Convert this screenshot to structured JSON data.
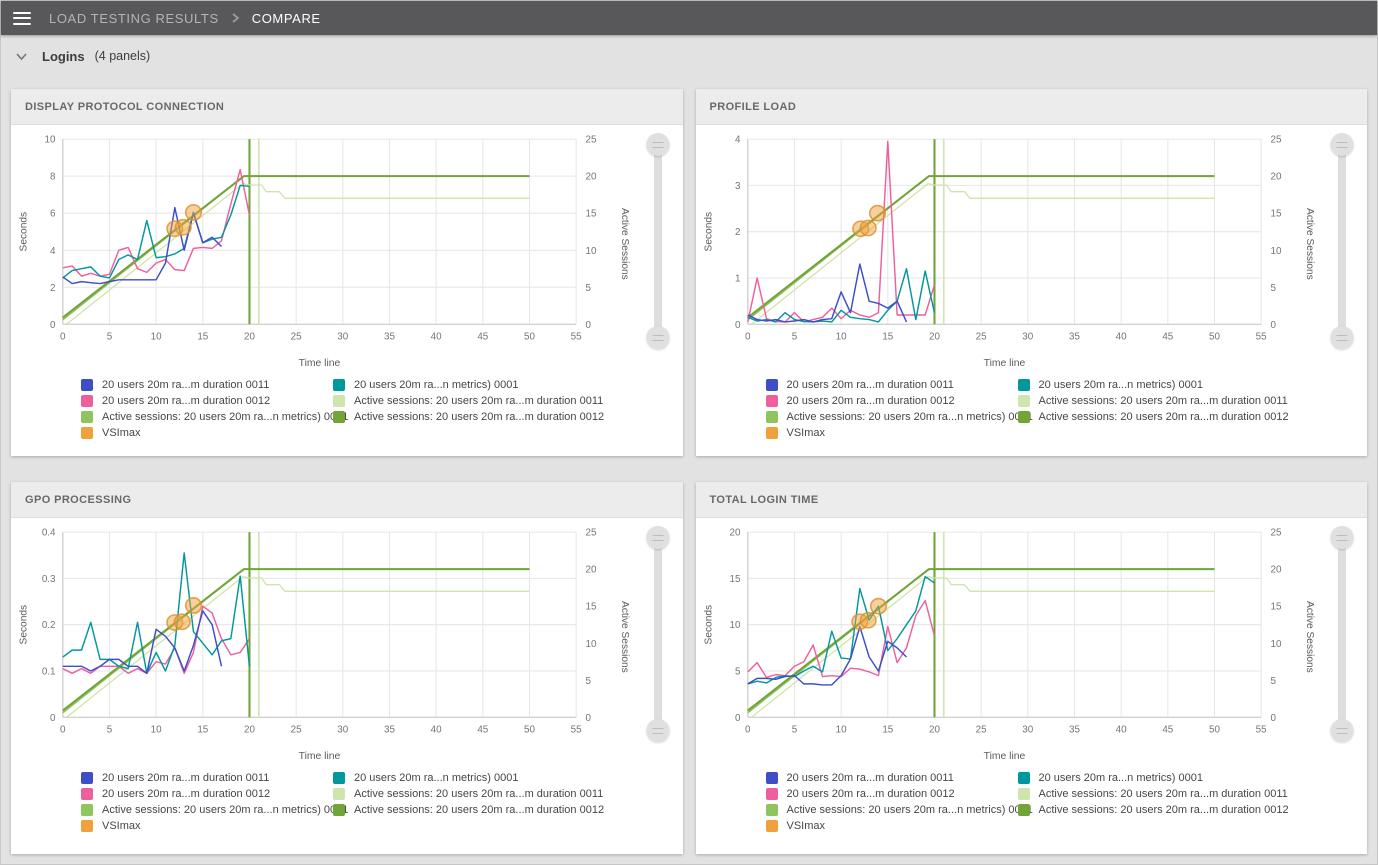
{
  "topbar": {
    "breadcrumb_root": "LOAD TESTING RESULTS",
    "breadcrumb_current": "COMPARE"
  },
  "section": {
    "label": "Logins",
    "count": "(4 panels)"
  },
  "colors": {
    "topbar_bg": "#58585a",
    "page_bg": "#e2e2e2",
    "panel_header_bg": "#ececec",
    "grid": "#e6e6e6",
    "axis": "#c8c8c8",
    "tick_text": "#757575",
    "blue": "#3d4ec6",
    "pink": "#ee5f9e",
    "teal": "#00989d",
    "pale_green": "#cfe5ae",
    "medium_green": "#8fc45e",
    "dark_green": "#73a437",
    "orange": "#efa13b",
    "orange_stroke": "#d98f2b"
  },
  "legend": {
    "col1": [
      {
        "label": "20 users 20m ra...m duration 0011",
        "color_key": "blue"
      },
      {
        "label": "20 users 20m ra...m duration 0012",
        "color_key": "pink"
      },
      {
        "label": "Active sessions: 20 users 20m ra...n metrics) 0001",
        "color_key": "medium_green"
      },
      {
        "label": "VSImax",
        "color_key": "orange"
      }
    ],
    "col2": [
      {
        "label": "20 users 20m ra...n metrics) 0001",
        "color_key": "teal"
      },
      {
        "label": "Active sessions: 20 users 20m ra...m duration 0011",
        "color_key": "pale_green"
      },
      {
        "label": "Active sessions: 20 users 20m ra...m duration 0012",
        "color_key": "dark_green"
      }
    ]
  },
  "chart_data": [
    {
      "type": "line",
      "title": "DISPLAY PROTOCOL CONNECTION",
      "xlabel": "Time line",
      "ylabel_left": "Seconds",
      "ylabel_right": "Active Sessions",
      "xlim": [
        0,
        55
      ],
      "x_ticks": [
        0,
        5,
        10,
        15,
        20,
        25,
        30,
        35,
        40,
        45,
        50,
        55
      ],
      "ylim_left": [
        0,
        10
      ],
      "y_ticks_left": [
        0,
        2,
        4,
        6,
        8,
        10
      ],
      "ylim_right": [
        0,
        25
      ],
      "y_ticks_right": [
        0,
        5,
        10,
        15,
        20,
        25
      ],
      "series": [
        {
          "name": "Active sessions: 20 users 20m ra...m duration 0011",
          "color_key": "pale_green",
          "axis": "right",
          "width": 1.3,
          "x": [
            0.4,
            19.3,
            20,
            21.3,
            21.8,
            23.2,
            23.8,
            50
          ],
          "y": [
            0,
            19,
            18.8,
            18.8,
            17.9,
            17.9,
            17,
            17
          ]
        },
        {
          "name": "Active sessions: 20 users 20m ra...n metrics) 0001",
          "color_key": "medium_green",
          "axis": "right",
          "width": 1.5,
          "x": [
            0,
            19.4,
            50
          ],
          "y": [
            0.6,
            20,
            20
          ]
        },
        {
          "name": "Active sessions: 20 users 20m ra...m duration 0012",
          "color_key": "dark_green",
          "axis": "right",
          "width": 2,
          "x": [
            0,
            19.4,
            50
          ],
          "y": [
            0.9,
            20,
            20
          ]
        },
        {
          "name": "20 users 20m ra...m duration 0012",
          "color_key": "pink",
          "axis": "left",
          "width": 1.4,
          "values": [
            3.05,
            3.15,
            2.6,
            2.75,
            2.6,
            2.7,
            4.0,
            4.15,
            3.0,
            2.8,
            3.3,
            3.5,
            2.95,
            2.9,
            4.1,
            4.15,
            4.1,
            4.5,
            6.5,
            8.35,
            5.9
          ]
        },
        {
          "name": "20 users 20m ra...n metrics) 0001",
          "color_key": "teal",
          "axis": "left",
          "width": 1.4,
          "values": [
            2.5,
            2.9,
            3.0,
            3.1,
            2.6,
            2.5,
            3.5,
            3.75,
            3.5,
            5.6,
            3.6,
            3.65,
            3.8,
            4.1,
            6.05,
            4.4,
            4.6,
            4.7,
            5.9,
            7.5,
            7.45
          ]
        },
        {
          "name": "20 users 20m ra...m duration 0011",
          "color_key": "blue",
          "axis": "left",
          "width": 1.4,
          "values": [
            2.55,
            2.2,
            2.3,
            2.25,
            2.2,
            2.3,
            2.4,
            2.4,
            2.4,
            2.4,
            2.4,
            3.3,
            6.3,
            4.0,
            6.0,
            4.4,
            4.7,
            4.2
          ]
        }
      ],
      "vlines": [
        {
          "x": 20,
          "color_key": "dark_green",
          "width": 2
        },
        {
          "x": 21,
          "color_key": "pale_green",
          "width": 1.5
        }
      ],
      "markers": {
        "name": "VSImax",
        "color_key": "orange",
        "axis": "right",
        "points": [
          [
            12,
            12.9
          ],
          [
            12.9,
            13.1
          ],
          [
            14,
            15.1
          ]
        ]
      }
    },
    {
      "type": "line",
      "title": "PROFILE LOAD",
      "xlabel": "Time line",
      "ylabel_left": "Seconds",
      "ylabel_right": "Active Sessions",
      "xlim": [
        0,
        55
      ],
      "x_ticks": [
        0,
        5,
        10,
        15,
        20,
        25,
        30,
        35,
        40,
        45,
        50,
        55
      ],
      "ylim_left": [
        0,
        4
      ],
      "y_ticks_left": [
        0,
        1,
        2,
        3,
        4
      ],
      "ylim_right": [
        0,
        25
      ],
      "y_ticks_right": [
        0,
        5,
        10,
        15,
        20,
        25
      ],
      "series": [
        {
          "name": "Active sessions: 20 users 20m ra...m duration 0011",
          "color_key": "pale_green",
          "axis": "right",
          "width": 1.3,
          "x": [
            0.4,
            19.3,
            20,
            21.3,
            21.8,
            23.2,
            23.8,
            50
          ],
          "y": [
            0,
            19,
            18.8,
            18.8,
            17.9,
            17.9,
            17,
            17
          ]
        },
        {
          "name": "Active sessions: 20 users 20m ra...n metrics) 0001",
          "color_key": "medium_green",
          "axis": "right",
          "width": 1.5,
          "x": [
            0,
            19.4,
            50
          ],
          "y": [
            0.6,
            20,
            20
          ]
        },
        {
          "name": "Active sessions: 20 users 20m ra...m duration 0012",
          "color_key": "dark_green",
          "axis": "right",
          "width": 2,
          "x": [
            0,
            19.4,
            50
          ],
          "y": [
            0.9,
            20,
            20
          ]
        },
        {
          "name": "20 users 20m ra...m duration 0012",
          "color_key": "pink",
          "axis": "left",
          "width": 1.4,
          "values": [
            0.05,
            1.0,
            0.12,
            0.06,
            0.05,
            0.25,
            0.05,
            0.1,
            0.15,
            0.35,
            0.12,
            0.3,
            0.2,
            0.15,
            0.25,
            3.95,
            0.2,
            0.2,
            0.2,
            0.2,
            0.85
          ]
        },
        {
          "name": "20 users 20m ra...n metrics) 0001",
          "color_key": "teal",
          "axis": "left",
          "width": 1.4,
          "values": [
            0.15,
            0.07,
            0.1,
            0.05,
            0.25,
            0.1,
            0.06,
            0.05,
            0.07,
            0.05,
            0.3,
            0.15,
            0.12,
            0.1,
            0.05,
            0.3,
            0.5,
            1.2,
            0.1,
            1.15,
            0.25
          ]
        },
        {
          "name": "20 users 20m ra...m duration 0011",
          "color_key": "blue",
          "axis": "left",
          "width": 1.4,
          "values": [
            0.2,
            0.1,
            0.07,
            0.1,
            0.05,
            0.07,
            0.1,
            0.05,
            0.1,
            0.12,
            0.7,
            0.25,
            1.3,
            0.5,
            0.45,
            0.35,
            0.5,
            0.05
          ]
        }
      ],
      "vlines": [
        {
          "x": 20,
          "color_key": "dark_green",
          "width": 2
        },
        {
          "x": 21,
          "color_key": "pale_green",
          "width": 1.5
        }
      ],
      "markers": {
        "name": "VSImax",
        "color_key": "orange",
        "axis": "right",
        "points": [
          [
            12.1,
            12.9
          ],
          [
            12.9,
            13.0
          ],
          [
            13.9,
            15.0
          ]
        ]
      }
    },
    {
      "type": "line",
      "title": "GPO PROCESSING",
      "xlabel": "Time line",
      "ylabel_left": "Seconds",
      "ylabel_right": "Active Sessions",
      "xlim": [
        0,
        55
      ],
      "x_ticks": [
        0,
        5,
        10,
        15,
        20,
        25,
        30,
        35,
        40,
        45,
        50,
        55
      ],
      "ylim_left": [
        0,
        0.4
      ],
      "y_ticks_left": [
        0,
        0.1,
        0.2,
        0.3,
        0.4
      ],
      "ylim_right": [
        0,
        25
      ],
      "y_ticks_right": [
        0,
        5,
        10,
        15,
        20,
        25
      ],
      "series": [
        {
          "name": "Active sessions: 20 users 20m ra...m duration 0011",
          "color_key": "pale_green",
          "axis": "right",
          "width": 1.3,
          "x": [
            0.4,
            19.3,
            20,
            21.3,
            21.8,
            23.2,
            23.8,
            50
          ],
          "y": [
            0,
            19,
            18.8,
            18.8,
            17.9,
            17.9,
            17,
            17
          ]
        },
        {
          "name": "Active sessions: 20 users 20m ra...n metrics) 0001",
          "color_key": "medium_green",
          "axis": "right",
          "width": 1.5,
          "x": [
            0,
            19.4,
            50
          ],
          "y": [
            0.6,
            20,
            20
          ]
        },
        {
          "name": "Active sessions: 20 users 20m ra...m duration 0012",
          "color_key": "dark_green",
          "axis": "right",
          "width": 2,
          "x": [
            0,
            19.4,
            50
          ],
          "y": [
            0.9,
            20,
            20
          ]
        },
        {
          "name": "20 users 20m ra...m duration 0012",
          "color_key": "pink",
          "axis": "left",
          "width": 1.4,
          "values": [
            0.105,
            0.095,
            0.105,
            0.095,
            0.11,
            0.11,
            0.11,
            0.095,
            0.105,
            0.095,
            0.12,
            0.115,
            0.15,
            0.095,
            0.14,
            0.24,
            0.225,
            0.17,
            0.135,
            0.14,
            0.17
          ]
        },
        {
          "name": "20 users 20m ra...n metrics) 0001",
          "color_key": "teal",
          "axis": "left",
          "width": 1.4,
          "values": [
            0.13,
            0.145,
            0.145,
            0.205,
            0.125,
            0.125,
            0.11,
            0.105,
            0.205,
            0.095,
            0.14,
            0.1,
            0.155,
            0.355,
            0.185,
            0.16,
            0.135,
            0.165,
            0.17,
            0.305,
            0.11
          ]
        },
        {
          "name": "20 users 20m ra...m duration 0011",
          "color_key": "blue",
          "axis": "left",
          "width": 1.4,
          "values": [
            0.11,
            0.11,
            0.11,
            0.1,
            0.11,
            0.125,
            0.125,
            0.11,
            0.11,
            0.095,
            0.19,
            0.175,
            0.15,
            0.1,
            0.155,
            0.23,
            0.2,
            0.11
          ]
        }
      ],
      "vlines": [
        {
          "x": 20,
          "color_key": "dark_green",
          "width": 2
        },
        {
          "x": 21,
          "color_key": "pale_green",
          "width": 1.5
        }
      ],
      "markers": {
        "name": "VSImax",
        "color_key": "orange",
        "axis": "right",
        "points": [
          [
            12,
            12.8
          ],
          [
            12.8,
            12.9
          ],
          [
            14,
            15.1
          ]
        ]
      }
    },
    {
      "type": "line",
      "title": "TOTAL LOGIN TIME",
      "xlabel": "Time line",
      "ylabel_left": "Seconds",
      "ylabel_right": "Active Sessions",
      "xlim": [
        0,
        55
      ],
      "x_ticks": [
        0,
        5,
        10,
        15,
        20,
        25,
        30,
        35,
        40,
        45,
        50,
        55
      ],
      "ylim_left": [
        0,
        20
      ],
      "y_ticks_left": [
        0,
        5,
        10,
        15,
        20
      ],
      "ylim_right": [
        0,
        25
      ],
      "y_ticks_right": [
        0,
        5,
        10,
        15,
        20,
        25
      ],
      "series": [
        {
          "name": "Active sessions: 20 users 20m ra...m duration 0011",
          "color_key": "pale_green",
          "axis": "right",
          "width": 1.3,
          "x": [
            0.4,
            19.3,
            20,
            21.3,
            21.8,
            23.2,
            23.8,
            50
          ],
          "y": [
            0,
            19,
            18.8,
            18.8,
            17.9,
            17.9,
            17,
            17
          ]
        },
        {
          "name": "Active sessions: 20 users 20m ra...n metrics) 0001",
          "color_key": "medium_green",
          "axis": "right",
          "width": 1.5,
          "x": [
            0,
            19.4,
            50
          ],
          "y": [
            0.6,
            20,
            20
          ]
        },
        {
          "name": "Active sessions: 20 users 20m ra...m duration 0012",
          "color_key": "dark_green",
          "axis": "right",
          "width": 2,
          "x": [
            0,
            19.4,
            50
          ],
          "y": [
            0.9,
            20,
            20
          ]
        },
        {
          "name": "20 users 20m ra...m duration 0012",
          "color_key": "pink",
          "axis": "left",
          "width": 1.4,
          "values": [
            4.9,
            5.9,
            4.3,
            4.6,
            4.5,
            5.5,
            6.0,
            7.8,
            4.4,
            4.5,
            4.4,
            5.3,
            5.2,
            4.9,
            4.5,
            9.8,
            5.9,
            7.5,
            11.0,
            12.6,
            8.8
          ]
        },
        {
          "name": "20 users 20m ra...n metrics) 0001",
          "color_key": "teal",
          "axis": "left",
          "width": 1.4,
          "values": [
            3.6,
            3.9,
            3.7,
            4.3,
            4.5,
            4.4,
            5.0,
            5.5,
            4.9,
            9.3,
            6.4,
            6.3,
            13.9,
            10.5,
            12.0,
            7.2,
            8.5,
            10.0,
            11.5,
            15.2,
            14.5
          ]
        },
        {
          "name": "20 users 20m ra...m duration 0011",
          "color_key": "blue",
          "axis": "left",
          "width": 1.4,
          "values": [
            3.6,
            4.2,
            4.2,
            4.1,
            4.4,
            4.5,
            3.6,
            3.6,
            3.5,
            3.5,
            4.5,
            6.3,
            9.8,
            6.5,
            5.0,
            8.2,
            7.5,
            6.5
          ]
        }
      ],
      "vlines": [
        {
          "x": 20,
          "color_key": "dark_green",
          "width": 2
        },
        {
          "x": 21,
          "color_key": "pale_green",
          "width": 1.5
        }
      ],
      "markers": {
        "name": "VSImax",
        "color_key": "orange",
        "axis": "right",
        "points": [
          [
            12,
            12.9
          ],
          [
            12.9,
            13.1
          ],
          [
            14,
            15.0
          ]
        ]
      }
    }
  ]
}
